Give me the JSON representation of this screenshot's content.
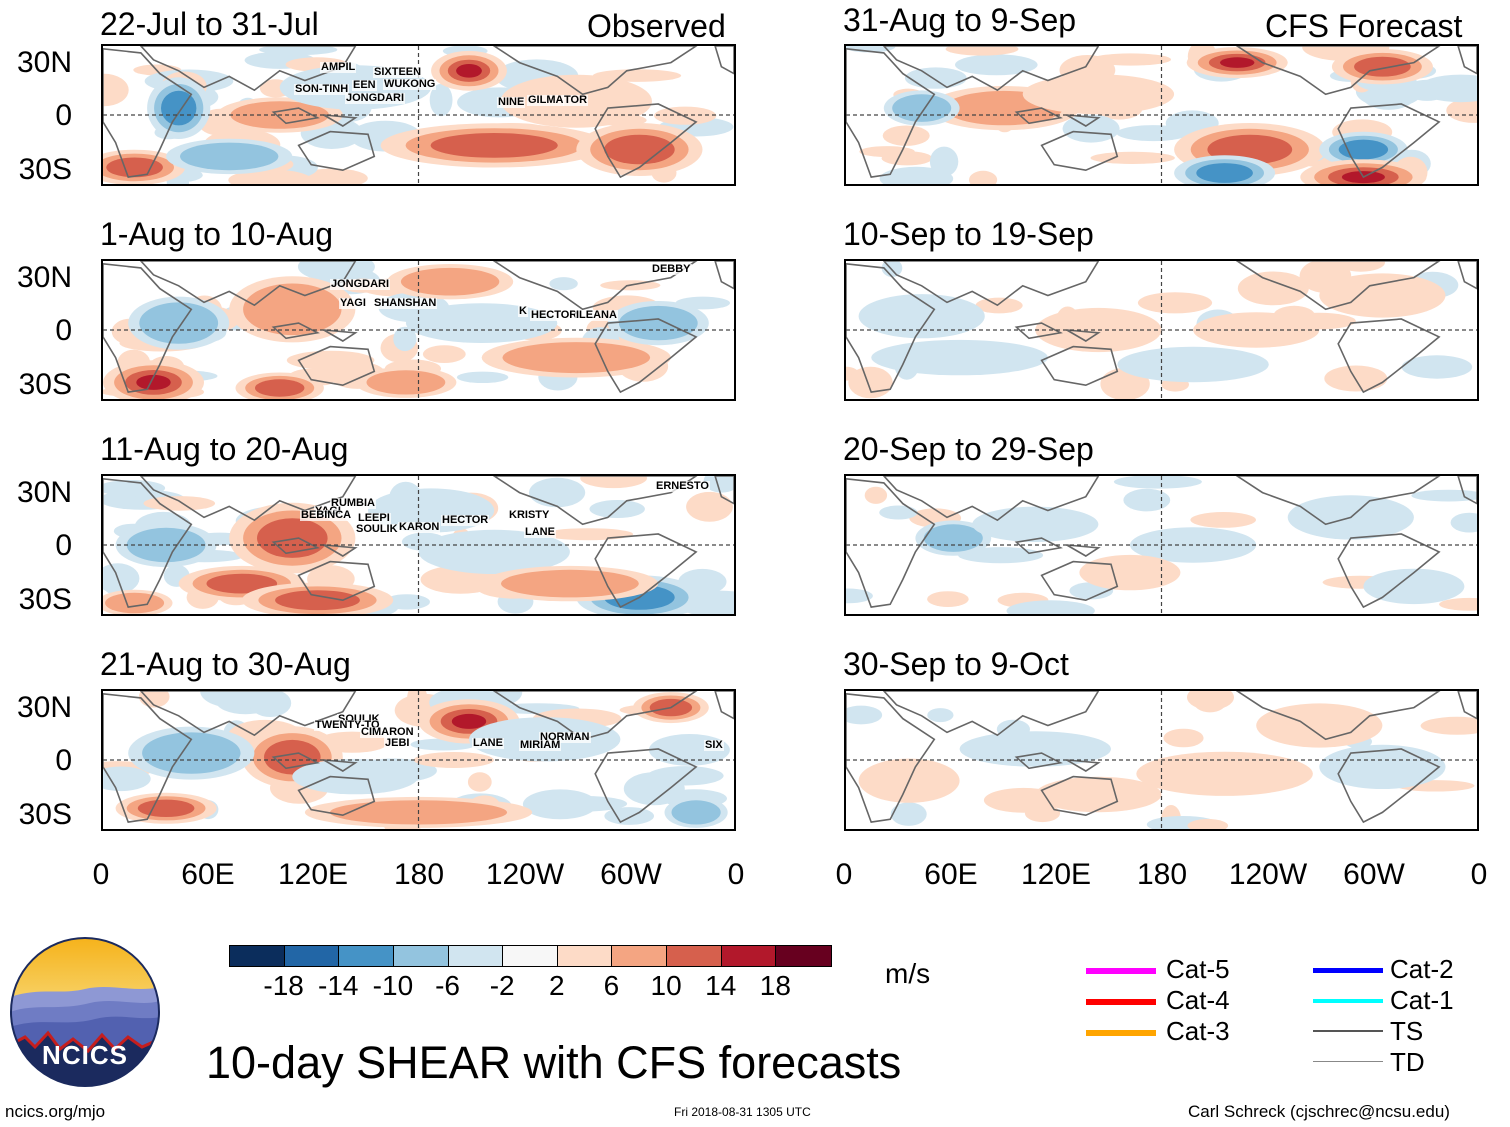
{
  "figure": {
    "main_title": "10-day SHEAR with CFS forecasts",
    "units": "m/s",
    "footer_left": "ncics.org/mjo",
    "footer_center": "Fri 2018-08-31 1305 UTC",
    "footer_right": "Carl Schreck (cjschrec@ncsu.edu)",
    "logo_text": "NCICS"
  },
  "columns": {
    "left_label": "Observed",
    "right_label": "CFS Forecast"
  },
  "panels_left": [
    {
      "period": "22-Jul to 31-Jul",
      "storms": [
        "AMPIL",
        "SIXTEEN",
        "WUKONG",
        "SON-TINH",
        "EEN",
        "JONGDARI",
        "NINE",
        "GILMA",
        "TOR"
      ]
    },
    {
      "period": "1-Aug to 10-Aug",
      "storms": [
        "DEBBY",
        "JONGDARI",
        "YAGI",
        "SHANSHAN",
        "K",
        "HECTOR",
        "ILEANA"
      ]
    },
    {
      "period": "11-Aug to 20-Aug",
      "storms": [
        "ERNESTO",
        "RUMBIA",
        "YAGI",
        "BEBINCA",
        "LEEPI",
        "SOULIK",
        "KARON",
        "HECTOR",
        "KRISTY",
        "LANE"
      ]
    },
    {
      "period": "21-Aug to 30-Aug",
      "storms": [
        "SOULIK",
        "TWENTY-TO",
        "CIMARON",
        "JEBI",
        "LANE",
        "NORMAN",
        "MIRIAM",
        "SIX"
      ]
    }
  ],
  "panels_right": [
    {
      "period": "31-Aug to 9-Sep"
    },
    {
      "period": "10-Sep to 19-Sep"
    },
    {
      "period": "20-Sep to 29-Sep"
    },
    {
      "period": "30-Sep to 9-Oct"
    }
  ],
  "axes": {
    "lat_labels": [
      "30N",
      "0",
      "30S"
    ],
    "lon_labels": [
      "0",
      "60E",
      "120E",
      "180",
      "120W",
      "60W",
      "0"
    ]
  },
  "colorbar": {
    "colors": [
      "#0b2d5c",
      "#2266a6",
      "#4593c6",
      "#93c4df",
      "#d1e5f0",
      "#f7f7f7",
      "#fddbc7",
      "#f4a582",
      "#d6604d",
      "#b2182b",
      "#67001f"
    ],
    "labels": [
      "-18",
      "-14",
      "-10",
      "-6",
      "-2",
      "2",
      "6",
      "10",
      "14",
      "18"
    ]
  },
  "legend": {
    "items": [
      {
        "label": "Cat-5",
        "color": "#ff00ff"
      },
      {
        "label": "Cat-4",
        "color": "#ff0000"
      },
      {
        "label": "Cat-3",
        "color": "#ffa500"
      },
      {
        "label": "Cat-2",
        "color": "#0000ff"
      },
      {
        "label": "Cat-1",
        "color": "#00ffff"
      },
      {
        "label": "TS",
        "color": "#555555"
      },
      {
        "label": "TD",
        "color": "#888888"
      }
    ]
  }
}
